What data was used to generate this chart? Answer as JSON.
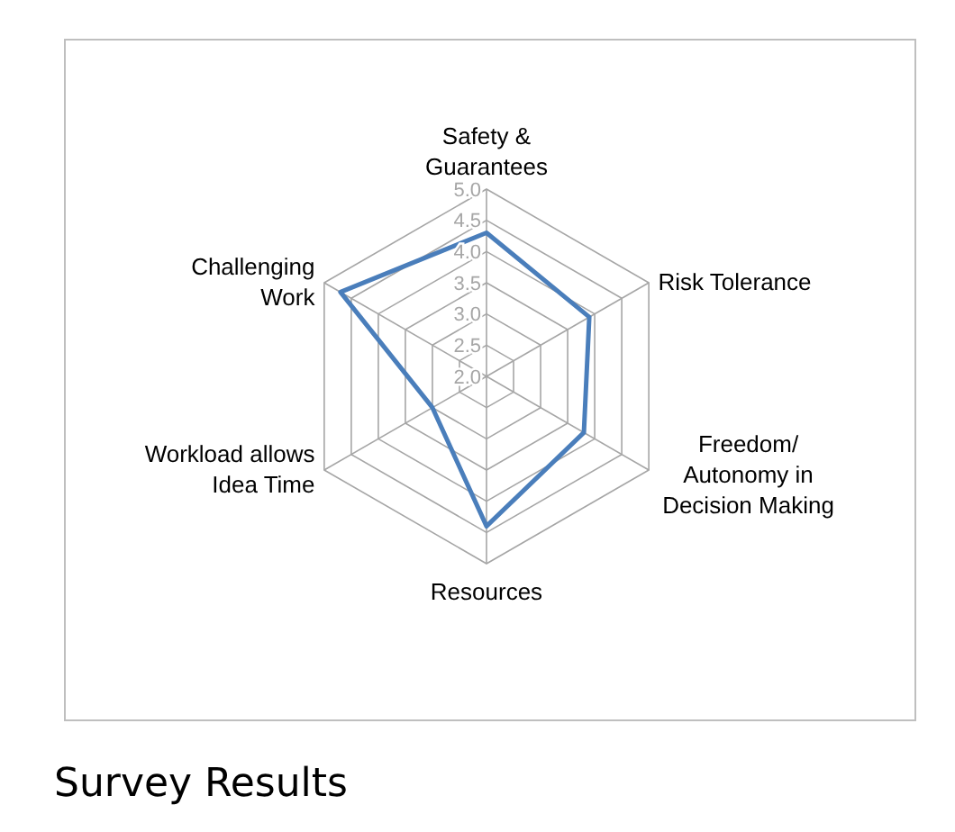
{
  "chart_data": {
    "type": "radar",
    "title": "Survey Results",
    "categories": [
      "Safety & Guarantees",
      "Risk Tolerance",
      "Freedom/ Autonomy in Decision Making",
      "Resources",
      "Workload allows Idea Time",
      "Challenging Work"
    ],
    "series": [
      {
        "color": "#4a7ebb",
        "values": [
          4.3,
          3.9,
          3.8,
          4.4,
          3.0,
          4.7
        ]
      }
    ],
    "ylim": [
      2.0,
      5.0
    ],
    "yticks": [
      {
        "value": 2.0,
        "label": "2.0"
      },
      {
        "value": 2.5,
        "label": "2.5"
      },
      {
        "value": 3.0,
        "label": "3.0"
      },
      {
        "value": 3.5,
        "label": "3.5"
      },
      {
        "value": 4.0,
        "label": "4.0"
      },
      {
        "value": 4.5,
        "label": "4.5"
      },
      {
        "value": 5.0,
        "label": "5.0"
      }
    ],
    "grid": true,
    "marker": "none",
    "line_style": "solid"
  }
}
